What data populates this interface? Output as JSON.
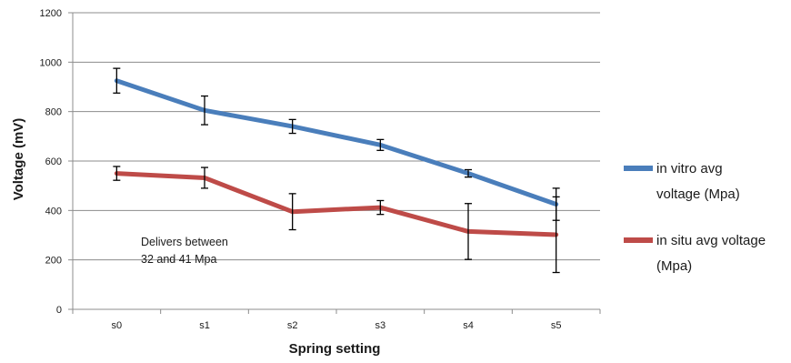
{
  "chart_data": {
    "type": "line",
    "title": "",
    "xlabel": "Spring setting",
    "ylabel": "Voltage (mV)",
    "categories": [
      "s0",
      "s1",
      "s2",
      "s3",
      "s4",
      "s5"
    ],
    "ylim": [
      0,
      1200
    ],
    "yticks": [
      "0",
      "200",
      "400",
      "600",
      "800",
      "1000",
      "1200"
    ],
    "grid": true,
    "legend_position": "right",
    "series": [
      {
        "name_lines": [
          "in vitro avg",
          "voltage (Mpa)"
        ],
        "color": "#4a7ebb",
        "values": [
          925,
          805,
          740,
          665,
          550,
          425
        ],
        "error": [
          50,
          58,
          28,
          22,
          15,
          65
        ]
      },
      {
        "name_lines": [
          "in situ avg voltage",
          "(Mpa)"
        ],
        "color": "#be4b48",
        "values": [
          550,
          532,
          395,
          412,
          315,
          302
        ],
        "error": [
          28,
          42,
          73,
          28,
          113,
          153
        ]
      }
    ],
    "annotation_lines": [
      "Delivers between",
      "32 and 41 Mpa"
    ],
    "error_bar_color": "#000000",
    "grid_color": "#8c8c8c"
  }
}
